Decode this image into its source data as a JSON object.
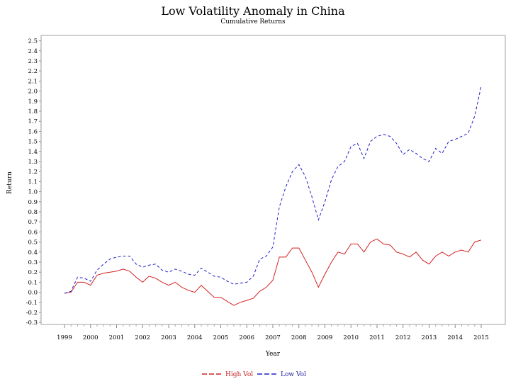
{
  "chart_data": {
    "type": "line",
    "title": "Low Volatility Anomaly in China",
    "subtitle": "Cumulative Returns",
    "xlabel": "Year",
    "ylabel": "Return",
    "xlim": [
      1999,
      2015
    ],
    "ylim": [
      -0.3,
      2.5
    ],
    "x_ticks": [
      "1999",
      "2000",
      "2001",
      "2002",
      "2003",
      "2004",
      "2005",
      "2006",
      "2007",
      "2008",
      "2009",
      "2010",
      "2011",
      "2012",
      "2013",
      "2014",
      "2015"
    ],
    "y_ticks": [
      "2.5",
      "2.4",
      "2.3",
      "2.2",
      "2.1",
      "2.0",
      "1.9",
      "1.8",
      "1.7",
      "1.6",
      "1.5",
      "1.4",
      "1.3",
      "1.2",
      "1.1",
      "1.0",
      "0.9",
      "0.8",
      "0.7",
      "0.6",
      "0.5",
      "0.4",
      "0.3",
      "0.2",
      "0.1",
      "0.0",
      "-0.1",
      "-0.2",
      "-0.3"
    ],
    "legend_placement": "bottom",
    "x": [
      1999,
      1999.25,
      1999.5,
      1999.75,
      2000,
      2000.25,
      2000.5,
      2000.75,
      2001,
      2001.25,
      2001.5,
      2001.75,
      2002,
      2002.25,
      2002.5,
      2002.75,
      2003,
      2003.25,
      2003.5,
      2003.75,
      2004,
      2004.25,
      2004.5,
      2004.75,
      2005,
      2005.25,
      2005.5,
      2005.75,
      2006,
      2006.25,
      2006.5,
      2006.75,
      2007,
      2007.25,
      2007.5,
      2007.75,
      2008,
      2008.25,
      2008.5,
      2008.75,
      2009,
      2009.25,
      2009.5,
      2009.75,
      2010,
      2010.25,
      2010.5,
      2010.75,
      2011,
      2011.25,
      2011.5,
      2011.75,
      2012,
      2012.25,
      2012.5,
      2012.75,
      2013,
      2013.25,
      2013.5,
      2013.75,
      2014,
      2014.25,
      2014.5,
      2014.75,
      2015
    ],
    "series": [
      {
        "name": "High Vol",
        "color": "#d42020",
        "style": "solid",
        "values": [
          -0.01,
          0.0,
          0.1,
          0.1,
          0.07,
          0.17,
          0.19,
          0.2,
          0.21,
          0.23,
          0.21,
          0.15,
          0.1,
          0.16,
          0.14,
          0.1,
          0.07,
          0.1,
          0.05,
          0.02,
          0.0,
          0.07,
          0.01,
          -0.05,
          -0.05,
          -0.09,
          -0.13,
          -0.1,
          -0.08,
          -0.06,
          0.01,
          0.05,
          0.12,
          0.35,
          0.35,
          0.44,
          0.44,
          0.32,
          0.2,
          0.05,
          0.18,
          0.3,
          0.4,
          0.38,
          0.48,
          0.48,
          0.4,
          0.5,
          0.53,
          0.48,
          0.47,
          0.4,
          0.38,
          0.35,
          0.4,
          0.32,
          0.28,
          0.36,
          0.4,
          0.36,
          0.4,
          0.42,
          0.4,
          0.5,
          0.52
        ]
      },
      {
        "name": "Low Vol",
        "color": "#2020c8",
        "style": "dashed",
        "values": [
          -0.01,
          0.01,
          0.15,
          0.14,
          0.11,
          0.22,
          0.28,
          0.33,
          0.35,
          0.36,
          0.36,
          0.28,
          0.25,
          0.27,
          0.28,
          0.22,
          0.2,
          0.23,
          0.21,
          0.18,
          0.17,
          0.24,
          0.2,
          0.16,
          0.15,
          0.11,
          0.08,
          0.09,
          0.1,
          0.16,
          0.33,
          0.36,
          0.45,
          0.85,
          1.05,
          1.2,
          1.27,
          1.15,
          0.95,
          0.72,
          0.9,
          1.12,
          1.25,
          1.3,
          1.45,
          1.48,
          1.33,
          1.5,
          1.55,
          1.57,
          1.55,
          1.48,
          1.37,
          1.42,
          1.38,
          1.33,
          1.3,
          1.43,
          1.38,
          1.5,
          1.52,
          1.55,
          1.58,
          1.75,
          2.05
        ]
      }
    ]
  }
}
